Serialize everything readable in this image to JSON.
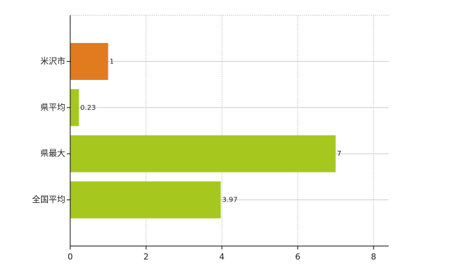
{
  "chart_data": {
    "type": "barh",
    "categories": [
      "米沢市",
      "県平均",
      "県最大",
      "全国平均"
    ],
    "values": [
      1,
      0.23,
      7,
      3.97
    ],
    "colors": [
      "#e07b20",
      "#a6c81e",
      "#a6c81e",
      "#a6c81e"
    ],
    "xlim": [
      0,
      8.4
    ],
    "xticks": [
      0,
      2,
      4,
      6,
      8
    ],
    "grid": true
  }
}
